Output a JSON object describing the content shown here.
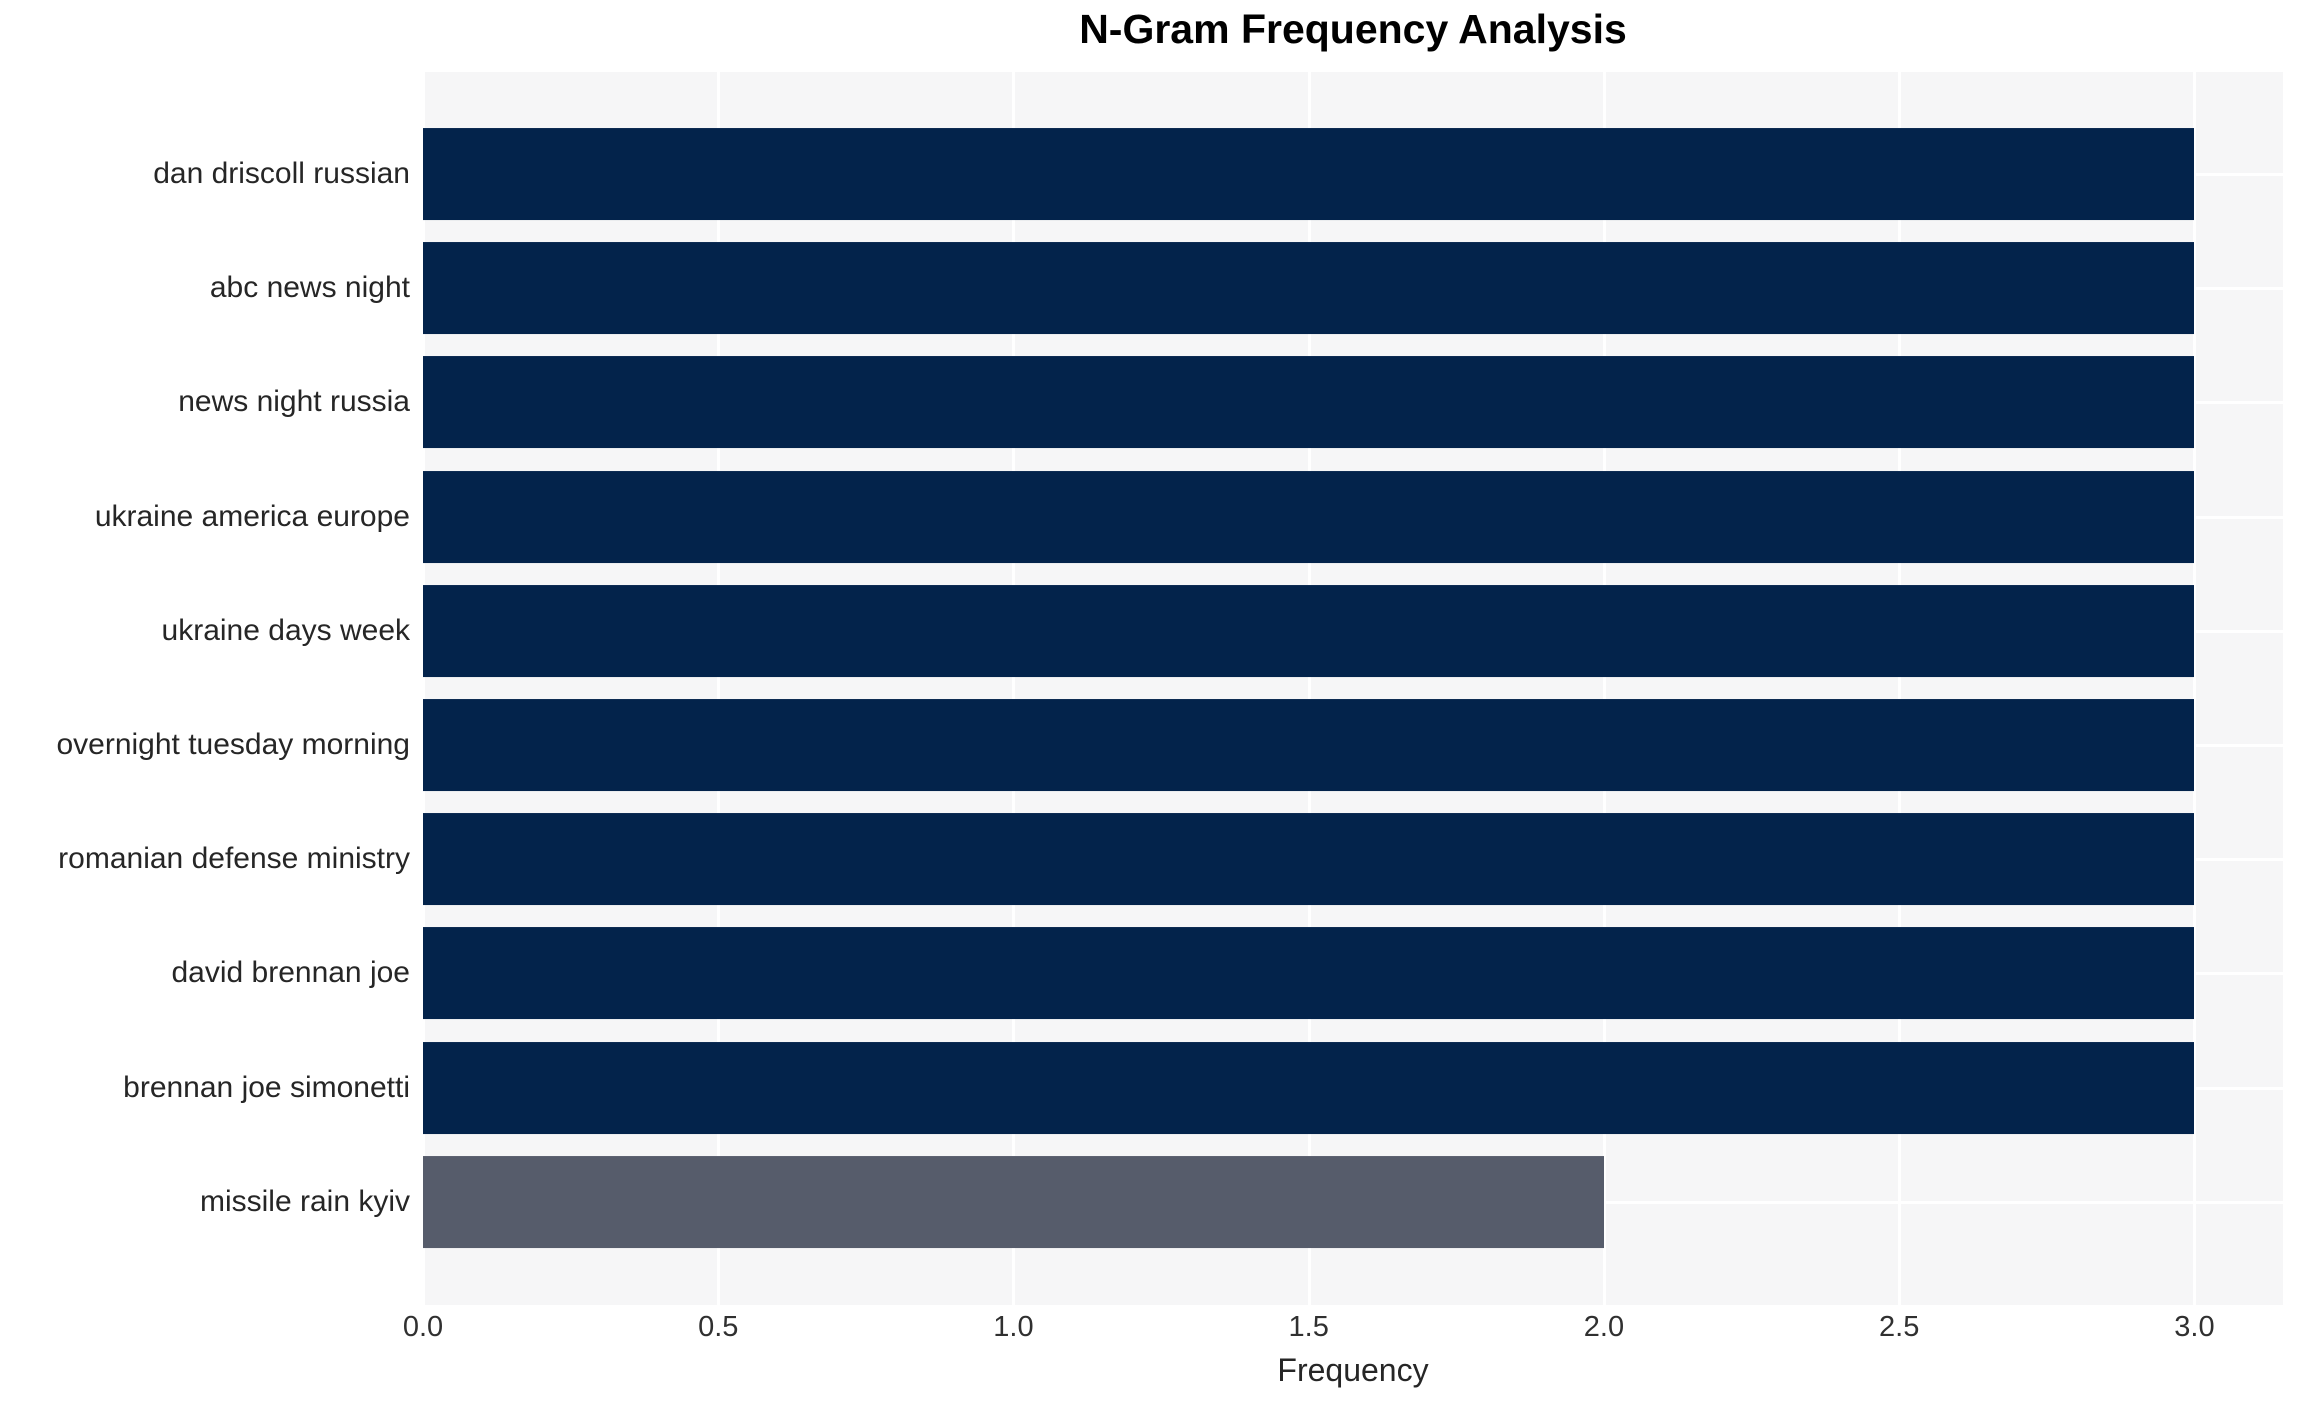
{
  "chart_data": {
    "type": "bar",
    "orientation": "horizontal",
    "title": "N-Gram Frequency Analysis",
    "xlabel": "Frequency",
    "ylabel": "",
    "categories": [
      "dan driscoll russian",
      "abc news night",
      "news night russia",
      "ukraine america europe",
      "ukraine days week",
      "overnight tuesday morning",
      "romanian defense ministry",
      "david brennan joe",
      "brennan joe simonetti",
      "missile rain kyiv"
    ],
    "values": [
      3,
      3,
      3,
      3,
      3,
      3,
      3,
      3,
      3,
      2
    ],
    "bar_colors": [
      "#03234b",
      "#03234b",
      "#03234b",
      "#03234b",
      "#03234b",
      "#03234b",
      "#03234b",
      "#03234b",
      "#03234b",
      "#565c6b"
    ],
    "xlim": [
      0,
      3.15
    ],
    "xticks": [
      0.0,
      0.5,
      1.0,
      1.5,
      2.0,
      2.5,
      3.0
    ],
    "xtick_labels": [
      "0.0",
      "0.5",
      "1.0",
      "1.5",
      "2.0",
      "2.5",
      "3.0"
    ],
    "grid": true,
    "legend_position": "none",
    "colors": {
      "plot_background": "#f6f6f7",
      "grid_line": "#ffffff",
      "title_text": "#000000",
      "axis_text": "#262626",
      "tick_text": "#303030"
    }
  }
}
